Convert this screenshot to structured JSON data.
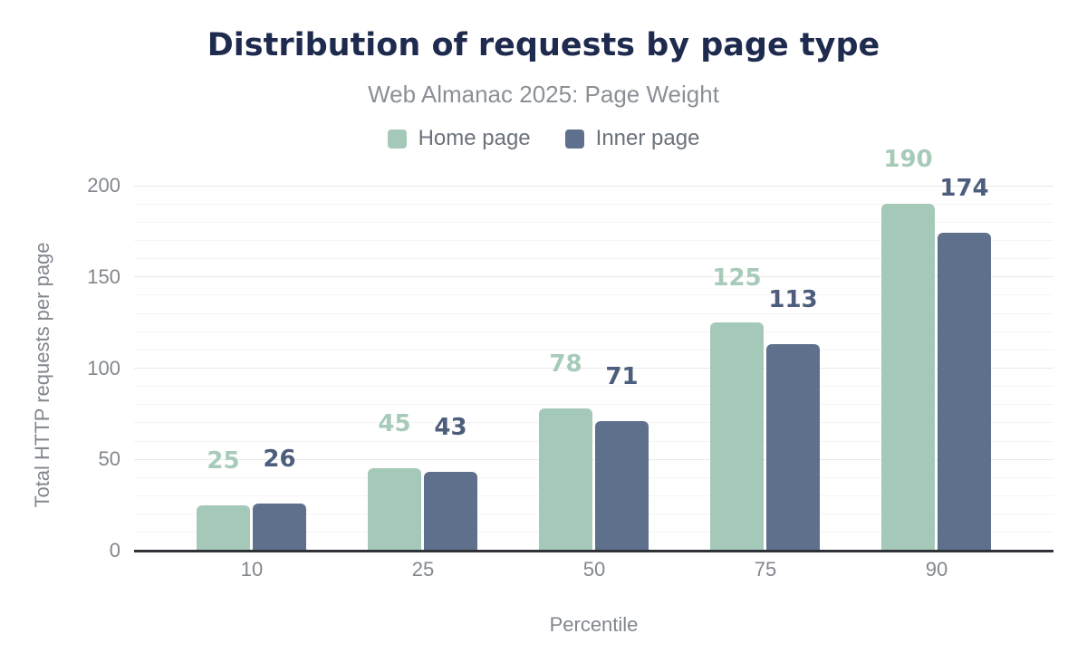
{
  "chart_data": {
    "type": "bar",
    "title": "Distribution of requests by page type",
    "subtitle": "Web Almanac 2025: Page Weight",
    "xlabel": "Percentile",
    "ylabel": "Total HTTP requests per page",
    "categories": [
      "10",
      "25",
      "50",
      "75",
      "90"
    ],
    "series": [
      {
        "name": "Home page",
        "color": "#a5c9b8",
        "label_color": "#a7cbb9",
        "values": [
          25,
          45,
          78,
          125,
          190
        ]
      },
      {
        "name": "Inner page",
        "color": "#5f708c",
        "label_color": "#4d5e7c",
        "values": [
          26,
          43,
          71,
          113,
          174
        ]
      }
    ],
    "ylim": [
      0,
      200
    ],
    "yticks": [
      0,
      50,
      100,
      150,
      200
    ],
    "minor_grid_step": 10,
    "major_grid_step": 50,
    "grid": true,
    "legend_position": "top"
  },
  "colors": {
    "title": "#1e2b4e",
    "subtitle": "#8b9096",
    "axis_text": "#82878e",
    "legend_text": "#6b727b",
    "axis_line": "#2f3237",
    "grid_minor": "#f4f4f6",
    "grid_major": "#e8e9eb",
    "background": "#ffffff"
  }
}
